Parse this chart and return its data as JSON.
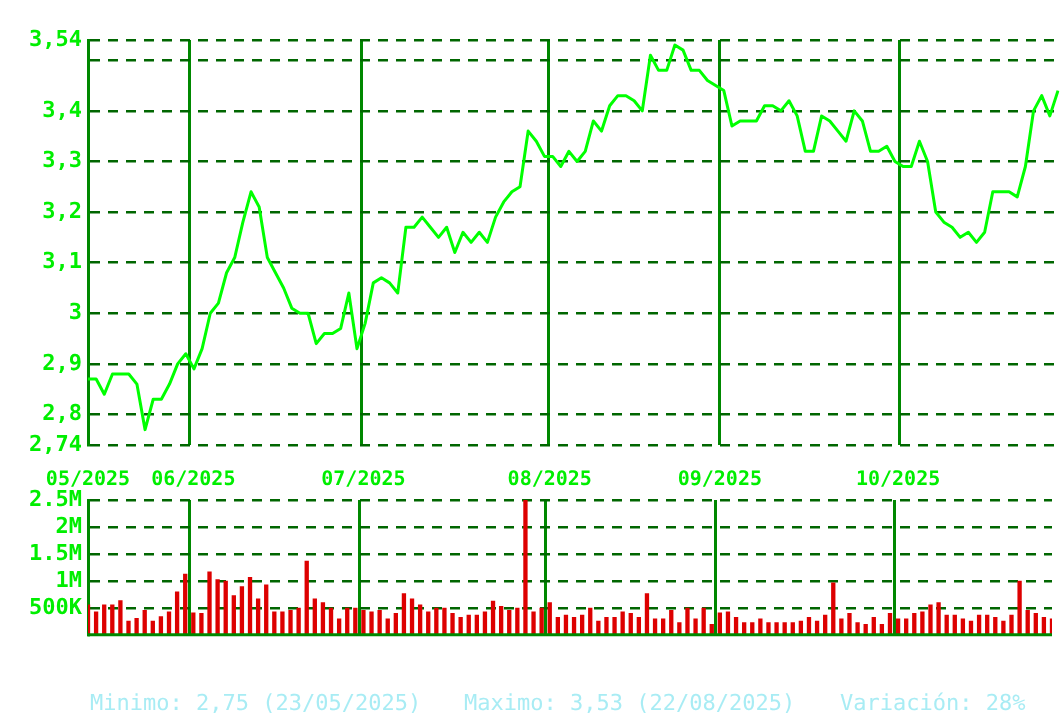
{
  "chart_data": [
    {
      "type": "line",
      "categories": [
        null,
        null,
        null,
        null,
        null,
        null,
        null,
        null,
        null,
        null,
        null,
        null,
        null,
        null,
        null,
        null,
        null,
        null,
        null,
        null,
        null,
        null,
        null,
        null,
        null,
        null,
        null,
        null,
        null,
        null,
        null,
        null,
        null,
        null,
        null,
        null,
        null,
        null,
        null,
        null,
        null,
        null,
        null,
        null,
        null,
        null,
        null,
        null,
        null,
        null,
        null,
        null,
        null,
        null,
        null,
        null,
        null,
        null,
        null,
        null,
        null,
        null,
        null,
        null,
        null,
        null,
        null,
        null,
        null,
        null,
        null,
        null,
        null,
        null,
        null,
        null,
        null,
        null,
        null,
        null,
        null,
        null,
        null,
        null,
        null,
        null,
        null,
        null,
        null,
        null,
        null,
        null,
        null,
        null,
        null,
        null,
        null,
        null,
        null,
        null,
        null,
        null,
        null,
        null,
        null,
        null,
        null,
        null,
        null,
        null,
        null,
        null,
        null,
        null,
        null,
        null,
        null,
        null,
        null,
        null
      ],
      "series": [
        {
          "color": "#00ff00",
          "values": [
            2.87,
            2.87,
            2.84,
            2.88,
            2.88,
            2.88,
            2.86,
            2.77,
            2.83,
            2.83,
            2.86,
            2.9,
            2.92,
            2.89,
            2.93,
            3.0,
            3.02,
            3.08,
            3.11,
            3.18,
            3.24,
            3.21,
            3.11,
            3.08,
            3.05,
            3.01,
            3.0,
            3.0,
            2.94,
            2.96,
            2.96,
            2.97,
            3.04,
            2.93,
            2.98,
            3.06,
            3.07,
            3.06,
            3.04,
            3.17,
            3.17,
            3.19,
            3.17,
            3.15,
            3.17,
            3.12,
            3.16,
            3.14,
            3.16,
            3.14,
            3.19,
            3.22,
            3.24,
            3.25,
            3.36,
            3.34,
            3.31,
            3.31,
            3.29,
            3.32,
            3.3,
            3.32,
            3.38,
            3.36,
            3.41,
            3.43,
            3.43,
            3.42,
            3.4,
            3.51,
            3.48,
            3.48,
            3.53,
            3.52,
            3.48,
            3.48,
            3.46,
            3.45,
            3.44,
            3.37,
            3.38,
            3.38,
            3.38,
            3.41,
            3.41,
            3.4,
            3.42,
            3.39,
            3.32,
            3.32,
            3.39,
            3.38,
            3.36,
            3.34,
            3.4,
            3.38,
            3.32,
            3.32,
            3.33,
            3.3,
            3.29,
            3.29,
            3.34,
            3.3,
            3.2,
            3.18,
            3.17,
            3.15,
            3.16,
            3.14,
            3.16,
            3.24,
            3.24,
            3.24,
            3.23,
            3.29,
            3.4,
            3.43,
            3.39,
            3.44
          ]
        }
      ],
      "ylim": [
        2.74,
        3.54
      ],
      "yticks": [
        {
          "value": 3.54,
          "label": "3,54"
        },
        {
          "value": 3.5,
          "label": null
        },
        {
          "value": 3.4,
          "label": "3,4"
        },
        {
          "value": 3.3,
          "label": "3,3"
        },
        {
          "value": 3.2,
          "label": "3,2"
        },
        {
          "value": 3.1,
          "label": "3,1"
        },
        {
          "value": 3,
          "label": "3"
        },
        {
          "value": 2.9,
          "label": "2,9"
        },
        {
          "value": 2.8,
          "label": "2,8"
        },
        {
          "value": 2.74,
          "label": "2,74"
        }
      ],
      "grid": true,
      "tick_labels": "y"
    },
    {
      "type": "bar",
      "categories": [
        "05/2025",
        null,
        null,
        null,
        null,
        null,
        null,
        null,
        null,
        null,
        null,
        null,
        null,
        "06/2025",
        null,
        null,
        null,
        null,
        null,
        null,
        null,
        null,
        null,
        null,
        null,
        null,
        null,
        null,
        null,
        null,
        null,
        null,
        null,
        null,
        "07/2025",
        null,
        null,
        null,
        null,
        null,
        null,
        null,
        null,
        null,
        null,
        null,
        null,
        null,
        null,
        null,
        null,
        null,
        null,
        null,
        null,
        null,
        null,
        "08/2025",
        null,
        null,
        null,
        null,
        null,
        null,
        null,
        null,
        null,
        null,
        null,
        null,
        null,
        null,
        null,
        null,
        null,
        null,
        null,
        null,
        "09/2025",
        null,
        null,
        null,
        null,
        null,
        null,
        null,
        null,
        null,
        null,
        null,
        null,
        null,
        null,
        null,
        null,
        null,
        null,
        null,
        null,
        null,
        "10/2025",
        null,
        null,
        null,
        null,
        null,
        null,
        null,
        null,
        null,
        null,
        null,
        null,
        null,
        null,
        null,
        null,
        null,
        null,
        null
      ],
      "series": [
        {
          "color": "#dd0000",
          "values": [
            550000,
            420000,
            550000,
            550000,
            630000,
            250000,
            300000,
            450000,
            250000,
            330000,
            420000,
            790000,
            1120000,
            400000,
            390000,
            1160000,
            1020000,
            990000,
            720000,
            890000,
            1060000,
            660000,
            920000,
            420000,
            420000,
            450000,
            490000,
            1360000,
            660000,
            590000,
            490000,
            290000,
            490000,
            490000,
            450000,
            420000,
            450000,
            290000,
            390000,
            760000,
            660000,
            550000,
            420000,
            490000,
            490000,
            390000,
            320000,
            360000,
            360000,
            420000,
            620000,
            520000,
            450000,
            490000,
            2500000,
            420000,
            490000,
            590000,
            320000,
            360000,
            320000,
            360000,
            490000,
            250000,
            320000,
            320000,
            420000,
            390000,
            320000,
            760000,
            290000,
            290000,
            450000,
            220000,
            490000,
            290000,
            490000,
            190000,
            400000,
            420000,
            320000,
            220000,
            220000,
            290000,
            220000,
            220000,
            220000,
            220000,
            250000,
            320000,
            250000,
            360000,
            960000,
            290000,
            390000,
            220000,
            190000,
            320000,
            190000,
            390000,
            290000,
            290000,
            390000,
            420000,
            550000,
            590000,
            360000,
            360000,
            290000,
            250000,
            360000,
            360000,
            320000,
            250000,
            360000,
            990000,
            450000,
            390000,
            320000,
            290000
          ]
        }
      ],
      "ylim": [
        0,
        2500000
      ],
      "yticks": [
        {
          "value": 500000,
          "label": "500K"
        },
        {
          "value": 1000000,
          "label": "1M"
        },
        {
          "value": 1500000,
          "label": "1.5M"
        },
        {
          "value": 2000000,
          "label": "2M"
        },
        {
          "value": 2500000,
          "label": "2.5M"
        }
      ],
      "grid": true,
      "annotations": [
        "Minimo: 2,75 (23/05/2025)",
        "Maximo: 3,53 (22/08/2025)",
        "Variación: 28%"
      ]
    }
  ]
}
